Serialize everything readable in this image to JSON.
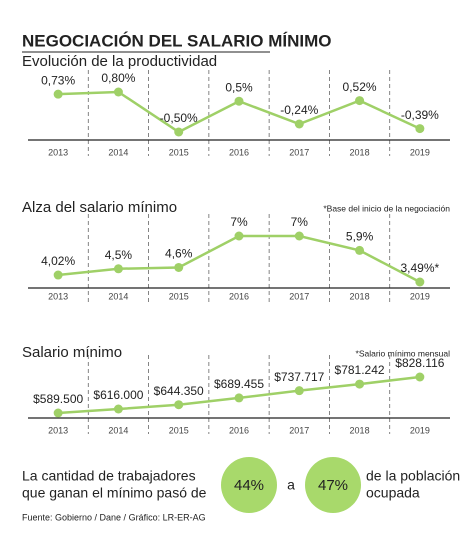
{
  "title": "NEGOCIACIÓN DEL SALARIO MÍNIMO",
  "chart_data": [
    {
      "type": "line",
      "title": "Evolución de la productividad",
      "categories": [
        "2013",
        "2014",
        "2015",
        "2016",
        "2017",
        "2018",
        "2019"
      ],
      "values": [
        0.73,
        0.8,
        -0.5,
        0.5,
        -0.24,
        0.52,
        -0.39
      ],
      "value_labels": [
        "0,73%",
        "0,80%",
        "-0,50%",
        "0,5%",
        "-0,24%",
        "0,52%",
        "-0,39%"
      ],
      "color": "#9fd067"
    },
    {
      "type": "line",
      "title": "Alza del salario mínimo",
      "note": "*Base del inicio de la negociación",
      "categories": [
        "2013",
        "2014",
        "2015",
        "2016",
        "2017",
        "2018",
        "2019"
      ],
      "values": [
        4.02,
        4.5,
        4.6,
        7,
        7,
        5.9,
        3.49
      ],
      "value_labels": [
        "4,02%",
        "4,5%",
        "4,6%",
        "7%",
        "7%",
        "5,9%",
        "3,49%*"
      ],
      "color": "#9fd067"
    },
    {
      "type": "line",
      "title": "Salario mínimo",
      "note": "*Salario mínimo mensual",
      "categories": [
        "2013",
        "2014",
        "2015",
        "2016",
        "2017",
        "2018",
        "2019"
      ],
      "values": [
        589500,
        616000,
        644350,
        689455,
        737717,
        781242,
        828116
      ],
      "value_labels": [
        "$589.500",
        "$616.000",
        "$644.350",
        "$689.455",
        "$737.717",
        "$781.242",
        "$828.116"
      ],
      "color": "#9fd067"
    }
  ],
  "footer": {
    "line1": "La cantidad de trabajadores",
    "line2": "que ganan el mínimo pasó de",
    "from": "44%",
    "connector": "a",
    "to": "47%",
    "after1": "de la población",
    "after2": "ocupada"
  },
  "source": "Fuente: Gobierno / Dane / Gráfico: LR-ER-AG"
}
